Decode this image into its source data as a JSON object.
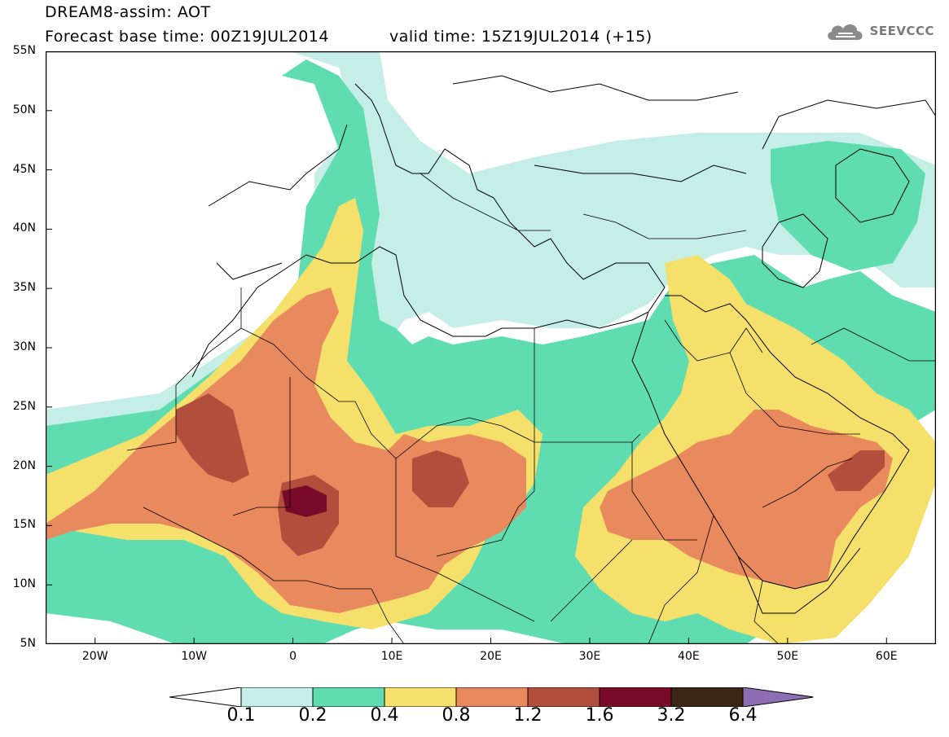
{
  "header": {
    "title": "DREAM8-assim: AOT",
    "base_time": "Forecast base time: 00Z19JUL2014",
    "valid_time": "valid time: 15Z19JUL2014 (+15)"
  },
  "logo": {
    "icon": "cloud-logo-icon",
    "text": "SEEVCCC"
  },
  "map": {
    "lat_labels": [
      "55N",
      "50N",
      "45N",
      "40N",
      "35N",
      "30N",
      "25N",
      "20N",
      "15N",
      "10N",
      "5N"
    ],
    "lon_labels": [
      "20W",
      "10W",
      "0",
      "10E",
      "20E",
      "30E",
      "40E",
      "50E",
      "60E"
    ],
    "lon_range": [
      -25,
      65
    ],
    "lat_range": [
      5,
      55
    ],
    "field": "aerosol optical thickness"
  },
  "colorbar": {
    "levels": [
      "0.1",
      "0.2",
      "0.4",
      "0.8",
      "1.2",
      "1.6",
      "3.2",
      "6.4"
    ],
    "colors": [
      "#ffffff",
      "#c5eee6",
      "#5fdcb0",
      "#f5e06c",
      "#e8895e",
      "#b24e3c",
      "#7a0a2a",
      "#3d2515",
      "#8e6eb3"
    ]
  }
}
